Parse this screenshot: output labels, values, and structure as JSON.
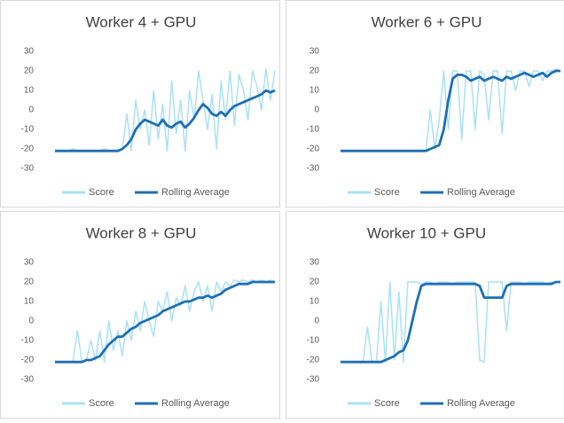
{
  "chart_data": [
    {
      "type": "line",
      "title": "Worker 4 + GPU",
      "ylim": [
        -30,
        30
      ],
      "yticks": [
        -30,
        -20,
        -10,
        0,
        10,
        20,
        30
      ],
      "series": [
        {
          "name": "Score",
          "color": "#a9e1f6",
          "values": [
            -21,
            -21,
            -21,
            -21,
            -20,
            -21,
            -21,
            -21,
            -21,
            -21,
            -21,
            -20,
            -21,
            -21,
            -21,
            -20,
            -2,
            -21,
            5,
            -10,
            0,
            -18,
            10,
            -15,
            3,
            -21,
            15,
            -12,
            5,
            -21,
            10,
            -5,
            20,
            5,
            -10,
            8,
            -20,
            15,
            -5,
            20,
            -8,
            18,
            10,
            -5,
            20,
            12,
            0,
            21,
            5,
            20
          ]
        },
        {
          "name": "Rolling Average",
          "color": "#1f6fb4",
          "values": [
            -21,
            -21,
            -21,
            -21,
            -21,
            -21,
            -21,
            -21,
            -21,
            -21,
            -21,
            -21,
            -21,
            -21,
            -21,
            -20,
            -18,
            -15,
            -10,
            -7,
            -5,
            -6,
            -7,
            -8,
            -5,
            -8,
            -9,
            -7,
            -6,
            -9,
            -7,
            -4,
            0,
            3,
            1,
            -2,
            -3,
            -1,
            -3,
            0,
            2,
            3,
            4,
            5,
            6,
            7,
            8,
            10,
            9,
            10
          ]
        }
      ]
    },
    {
      "type": "line",
      "title": "Worker 6 + GPU",
      "ylim": [
        -30,
        30
      ],
      "yticks": [
        -30,
        -20,
        -10,
        0,
        10,
        20,
        30
      ],
      "series": [
        {
          "name": "Score",
          "color": "#a9e1f6",
          "values": [
            -21,
            -21,
            -21,
            -21,
            -21,
            -21,
            -21,
            -21,
            -21,
            -21,
            -21,
            -21,
            -21,
            -21,
            -21,
            -21,
            -21,
            -21,
            -21,
            -21,
            0,
            -20,
            -5,
            20,
            -10,
            20,
            20,
            -15,
            20,
            20,
            -10,
            20,
            18,
            -5,
            20,
            20,
            -12,
            20,
            20,
            10,
            20,
            20,
            12,
            20,
            20,
            15,
            20,
            20,
            21,
            20
          ]
        },
        {
          "name": "Rolling Average",
          "color": "#1f6fb4",
          "values": [
            -21,
            -21,
            -21,
            -21,
            -21,
            -21,
            -21,
            -21,
            -21,
            -21,
            -21,
            -21,
            -21,
            -21,
            -21,
            -21,
            -21,
            -21,
            -21,
            -21,
            -20,
            -19,
            -18,
            -10,
            5,
            16,
            18,
            18,
            17,
            15,
            16,
            17,
            15,
            16,
            17,
            16,
            15,
            17,
            16,
            17,
            18,
            19,
            18,
            17,
            18,
            19,
            17,
            19,
            20,
            20
          ]
        }
      ]
    },
    {
      "type": "line",
      "title": "Worker 8 + GPU",
      "ylim": [
        -30,
        30
      ],
      "yticks": [
        -30,
        -20,
        -10,
        0,
        10,
        20,
        30
      ],
      "series": [
        {
          "name": "Score",
          "color": "#a9e1f6",
          "values": [
            -21,
            -21,
            -21,
            -21,
            -21,
            -5,
            -21,
            -20,
            -10,
            -20,
            -5,
            -21,
            0,
            -15,
            -5,
            -18,
            0,
            -10,
            5,
            -5,
            10,
            0,
            -8,
            10,
            5,
            15,
            0,
            12,
            8,
            18,
            5,
            15,
            20,
            10,
            18,
            5,
            20,
            15,
            20,
            18,
            21,
            20,
            21,
            20,
            21,
            20,
            21,
            20,
            21,
            20
          ]
        },
        {
          "name": "Rolling Average",
          "color": "#1f6fb4",
          "values": [
            -21,
            -21,
            -21,
            -21,
            -21,
            -21,
            -21,
            -20,
            -20,
            -19,
            -18,
            -15,
            -12,
            -10,
            -8,
            -8,
            -6,
            -4,
            -3,
            -1,
            0,
            1,
            2,
            3,
            5,
            6,
            7,
            8,
            9,
            10,
            10,
            11,
            12,
            12,
            13,
            12,
            13,
            14,
            16,
            17,
            18,
            19,
            19,
            19,
            20,
            20,
            20,
            20,
            20,
            20
          ]
        }
      ]
    },
    {
      "type": "line",
      "title": "Worker 10 + GPU",
      "ylim": [
        -30,
        30
      ],
      "yticks": [
        -30,
        -20,
        -10,
        0,
        10,
        20,
        30
      ],
      "series": [
        {
          "name": "Score",
          "color": "#a9e1f6",
          "values": [
            -21,
            -21,
            -21,
            -21,
            -21,
            -21,
            -3,
            -21,
            -21,
            10,
            -21,
            20,
            -20,
            15,
            -21,
            20,
            20,
            20,
            19,
            20,
            20,
            19,
            20,
            20,
            20,
            19,
            20,
            20,
            20,
            20,
            20,
            -20,
            -21,
            20,
            20,
            20,
            20,
            -5,
            20,
            20,
            20,
            19,
            20,
            20,
            20,
            20,
            19,
            20,
            20,
            20
          ]
        },
        {
          "name": "Rolling Average",
          "color": "#1f6fb4",
          "values": [
            -21,
            -21,
            -21,
            -21,
            -21,
            -21,
            -21,
            -21,
            -21,
            -21,
            -20,
            -19,
            -18,
            -16,
            -15,
            -10,
            0,
            10,
            18,
            19,
            19,
            19,
            19,
            19,
            19,
            19,
            19,
            19,
            19,
            19,
            19,
            18,
            12,
            12,
            12,
            12,
            12,
            18,
            19,
            19,
            19,
            19,
            19,
            19,
            19,
            19,
            19,
            19,
            20,
            20
          ]
        }
      ]
    }
  ]
}
